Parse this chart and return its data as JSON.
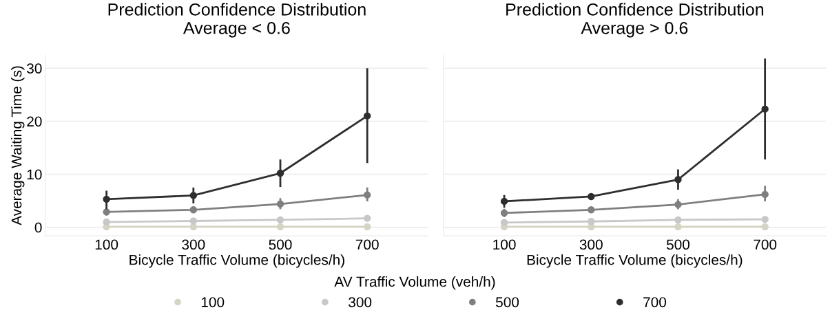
{
  "chart_data": [
    {
      "type": "line",
      "title": "Prediction Confidence Distribution\nAverage < 0.6",
      "xlabel": "Bicycle Traffic Volume (bicycles/h)",
      "ylabel": "Average Waiting Time (s)",
      "categories": [
        "100",
        "300",
        "500",
        "700"
      ],
      "ylim": [
        -1.6,
        32.5
      ],
      "yticks": [
        0,
        10,
        20,
        30
      ],
      "grid": "y",
      "marker": "circle",
      "line_style": "solid",
      "legend": "bottom",
      "legend_title": "AV Traffic Volume (veh/h)",
      "series": [
        {
          "name": "100",
          "color": "#d6d4c4",
          "values": [
            0.1,
            0.1,
            0.1,
            0.1
          ]
        },
        {
          "name": "300",
          "color": "#c8c8c8",
          "values": [
            1.0,
            1.2,
            1.4,
            1.7
          ]
        },
        {
          "name": "500",
          "color": "#7f7f7f",
          "values": [
            2.9,
            3.3,
            4.4,
            6.1
          ],
          "errors": [
            [
              2.2,
              3.6
            ],
            [
              2.7,
              3.9
            ],
            [
              3.4,
              5.5
            ],
            [
              4.9,
              7.5
            ]
          ]
        },
        {
          "name": "700",
          "color": "#2e2e2e",
          "values": [
            5.3,
            6.0,
            10.2,
            21.0
          ],
          "errors": [
            [
              3.4,
              6.9
            ],
            [
              4.5,
              7.5
            ],
            [
              7.6,
              12.8
            ],
            [
              12.1,
              30.0
            ]
          ]
        }
      ]
    },
    {
      "type": "line",
      "title": "Prediction Confidence Distribution\nAverage > 0.6",
      "xlabel": "Bicycle Traffic Volume (bicycles/h)",
      "categories": [
        "100",
        "300",
        "500",
        "700"
      ],
      "ylim": [
        -1.6,
        32.5
      ],
      "yticks": [
        0,
        10,
        20,
        30
      ],
      "grid": "y",
      "marker": "circle",
      "line_style": "solid",
      "tick_labels": "x",
      "series": [
        {
          "color": "#d6d4c4",
          "values": [
            0.1,
            0.1,
            0.1,
            0.1
          ]
        },
        {
          "color": "#c8c8c8",
          "values": [
            0.9,
            1.1,
            1.4,
            1.5
          ]
        },
        {
          "color": "#7f7f7f",
          "values": [
            2.7,
            3.3,
            4.3,
            6.2
          ],
          "errors": [
            [
              1.9,
              3.5
            ],
            [
              2.9,
              3.7
            ],
            [
              3.4,
              5.3
            ],
            [
              4.9,
              7.8
            ]
          ]
        },
        {
          "color": "#2e2e2e",
          "values": [
            4.9,
            5.8,
            9.0,
            22.3
          ],
          "errors": [
            [
              3.7,
              6.1
            ],
            null,
            [
              7.1,
              10.9
            ],
            [
              12.8,
              31.8
            ]
          ]
        }
      ]
    }
  ]
}
